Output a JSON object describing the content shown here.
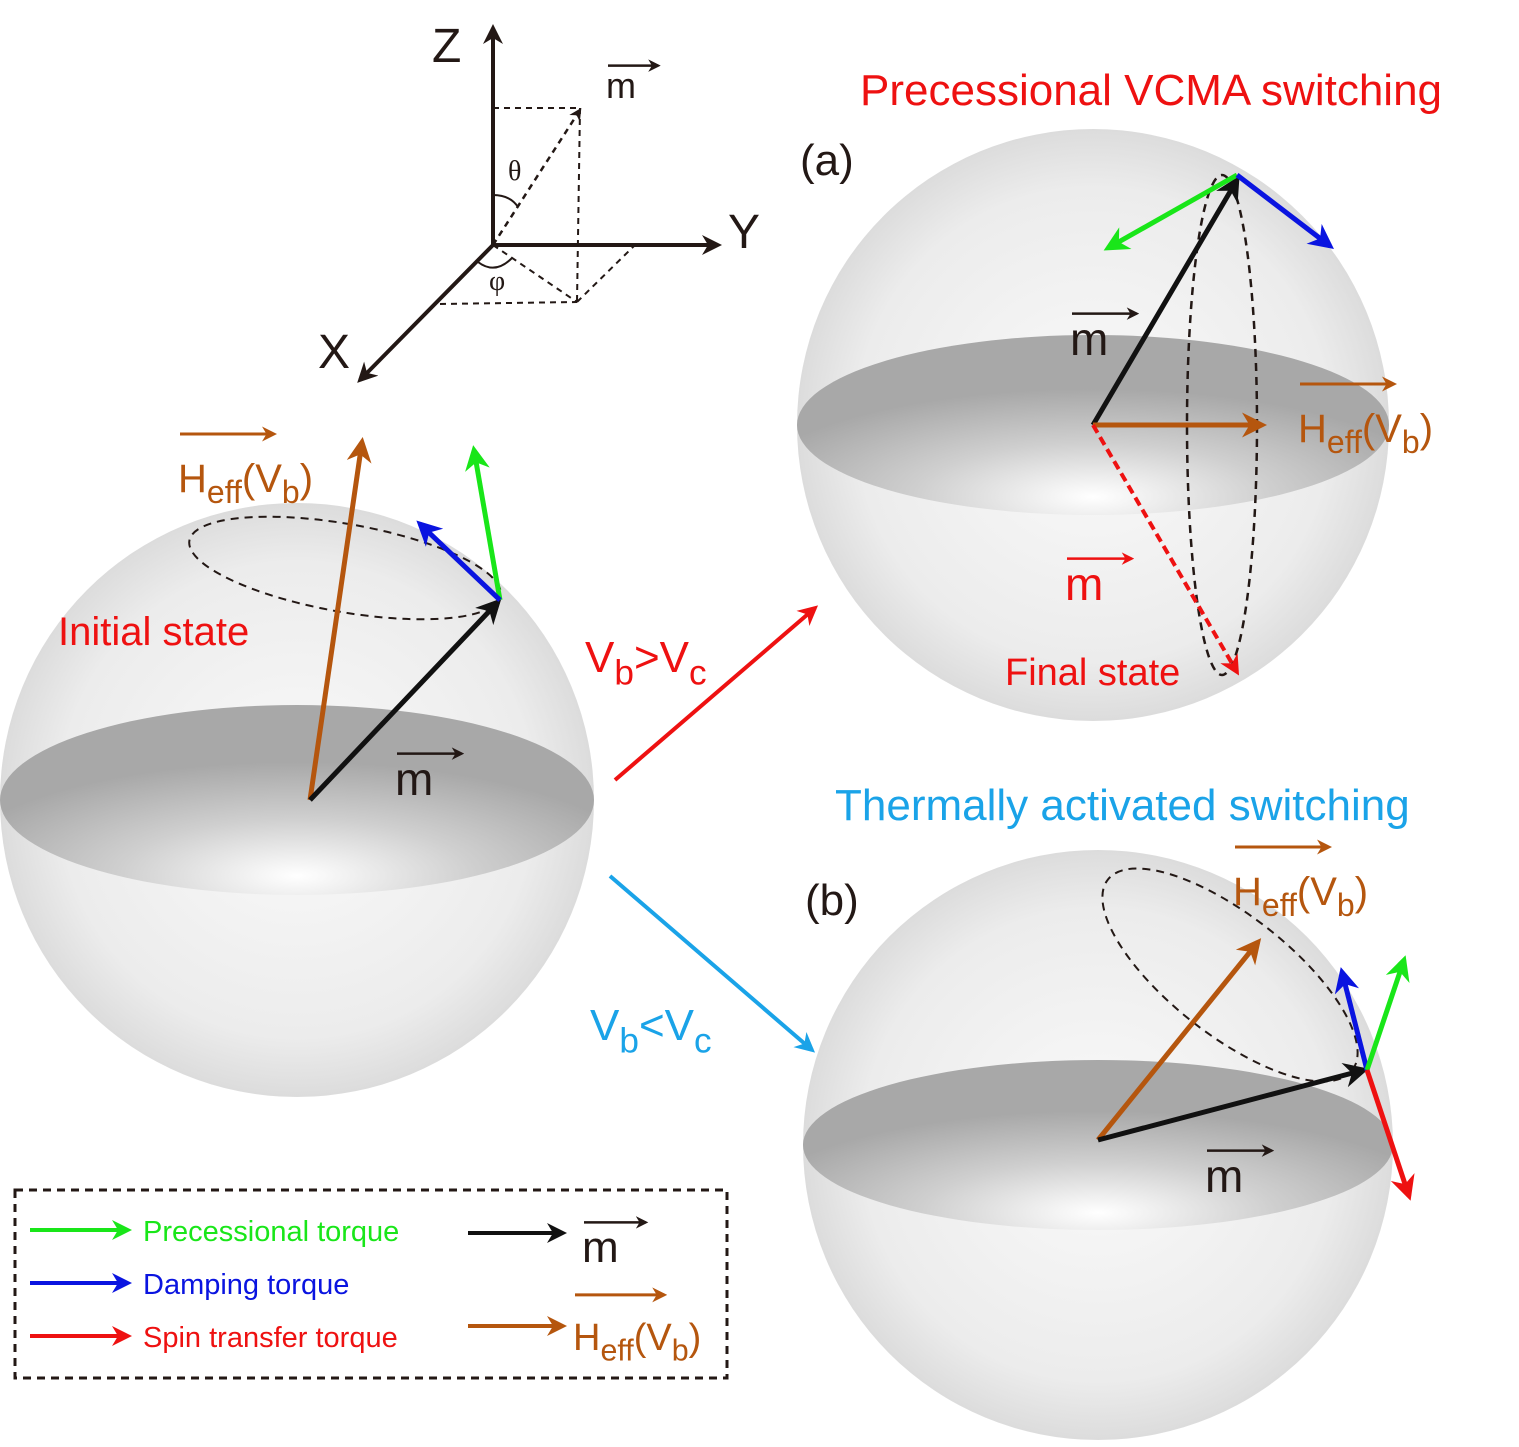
{
  "axes": {
    "z": "Z",
    "y": "Y",
    "x": "X",
    "vector": "m",
    "theta": "θ",
    "phi": "φ"
  },
  "initial": {
    "label": "Initial state",
    "m": "m",
    "heff": [
      {
        "t": "H",
        "sub": false
      },
      {
        "t": "eff",
        "sub": true
      },
      {
        "t": "(V",
        "sub": false
      },
      {
        "t": "b",
        "sub": true
      },
      {
        "t": ")",
        "sub": false
      }
    ]
  },
  "transitions": [
    {
      "label": [
        {
          "t": "V",
          "sub": false
        },
        {
          "t": "b",
          "sub": true
        },
        {
          "t": ">V",
          "sub": false
        },
        {
          "t": "c",
          "sub": true
        }
      ]
    },
    {
      "label": [
        {
          "t": "V",
          "sub": false
        },
        {
          "t": "b",
          "sub": true
        },
        {
          "t": "<V",
          "sub": false
        },
        {
          "t": "c",
          "sub": true
        }
      ]
    }
  ],
  "panel_a": {
    "title": "Precessional VCMA switching",
    "tag": "(a)",
    "m": "m",
    "final_m": "m",
    "final_label": "Final state",
    "heff": [
      {
        "t": "H",
        "sub": false
      },
      {
        "t": "eff",
        "sub": true
      },
      {
        "t": "(V",
        "sub": false
      },
      {
        "t": "b",
        "sub": true
      },
      {
        "t": ")",
        "sub": false
      }
    ]
  },
  "panel_b": {
    "title": "Thermally activated switching",
    "tag": "(b)",
    "m": "m",
    "heff": [
      {
        "t": "H",
        "sub": false
      },
      {
        "t": "eff",
        "sub": true
      },
      {
        "t": "(V",
        "sub": false
      },
      {
        "t": "b",
        "sub": true
      },
      {
        "t": ")",
        "sub": false
      }
    ]
  },
  "legend": {
    "items": [
      "Precessional torque",
      "Damping torque",
      "Spin transfer torque"
    ],
    "m": "m",
    "heff": [
      {
        "t": "H",
        "sub": false
      },
      {
        "t": "eff",
        "sub": true
      },
      {
        "t": "(V",
        "sub": false
      },
      {
        "t": "b",
        "sub": true
      },
      {
        "t": ")",
        "sub": false
      }
    ]
  }
}
